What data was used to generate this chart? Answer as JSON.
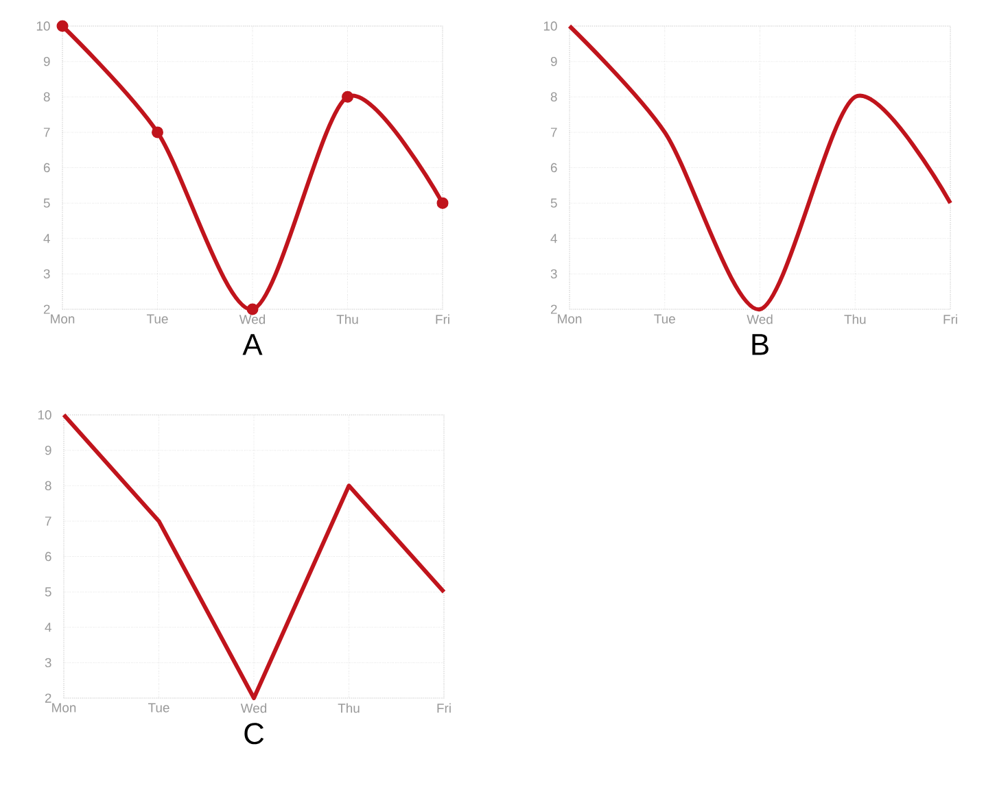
{
  "chart_data": [
    {
      "type": "line",
      "xlabel": "A",
      "categories": [
        "Mon",
        "Tue",
        "Wed",
        "Thu",
        "Fri"
      ],
      "values": [
        10,
        7,
        2,
        8,
        5
      ],
      "color": "#c0141c",
      "ylim": [
        2,
        10
      ],
      "yticks": [
        2,
        3,
        4,
        5,
        6,
        7,
        8,
        9,
        10
      ],
      "grid": true,
      "marker": "circle"
    },
    {
      "type": "line",
      "xlabel": "B",
      "categories": [
        "Mon",
        "Tue",
        "Wed",
        "Thu",
        "Fri"
      ],
      "values": [
        10,
        7,
        2,
        8,
        5
      ],
      "color": "#c0141c",
      "ylim": [
        2,
        10
      ],
      "yticks": [
        2,
        3,
        4,
        5,
        6,
        7,
        8,
        9,
        10
      ],
      "grid": true
    },
    {
      "type": "line",
      "xlabel": "C",
      "categories": [
        "Mon",
        "Tue",
        "Wed",
        "Thu",
        "Fri"
      ],
      "values": [
        10,
        7,
        2,
        8,
        5
      ],
      "color": "#c0141c",
      "ylim": [
        2,
        10
      ],
      "yticks": [
        2,
        3,
        4,
        5,
        6,
        7,
        8,
        9,
        10
      ],
      "grid": true
    }
  ]
}
